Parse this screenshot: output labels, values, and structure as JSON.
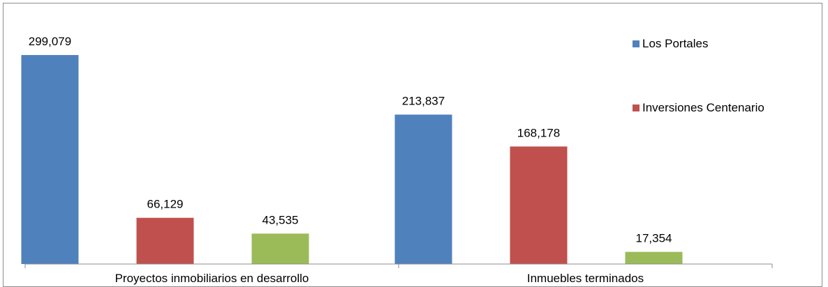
{
  "chart_data": {
    "type": "bar",
    "categories": [
      "Proyectos inmobiliarios en desarrollo",
      "Inmuebles terminados"
    ],
    "series": [
      {
        "name": "Los Portales",
        "color": "#4f81bd",
        "values": [
          299079,
          213837
        ],
        "labels": [
          "299,079",
          "213,837"
        ]
      },
      {
        "name": "Inversiones Centenario",
        "color": "#c0504d",
        "values": [
          66129,
          168178
        ],
        "labels": [
          "66,129",
          "168,178"
        ]
      },
      {
        "color": "#9bbb59",
        "values": [
          43535,
          17354
        ],
        "labels": [
          "43,535",
          "17,354"
        ]
      }
    ],
    "ylim": [
      0,
      330000
    ],
    "grid": false,
    "legend_position": "top-right"
  }
}
